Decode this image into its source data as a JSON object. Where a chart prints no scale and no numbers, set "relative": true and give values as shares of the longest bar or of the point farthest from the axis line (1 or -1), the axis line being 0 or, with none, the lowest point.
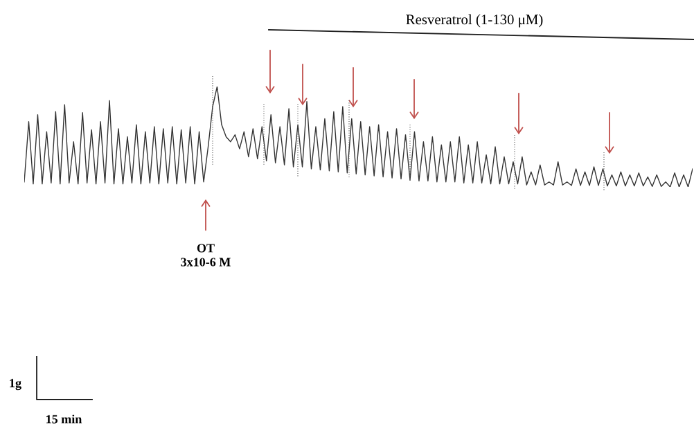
{
  "chart_data": {
    "type": "line",
    "relative": true,
    "annotations": [
      "Resveratrol (1-130 μM)",
      "OT\n3x10-6 M",
      "1g",
      "15 min"
    ],
    "categories": [
      null,
      null,
      null,
      null,
      null,
      null,
      null,
      null,
      null,
      null,
      null,
      null,
      null,
      null,
      null,
      null,
      null,
      null,
      null,
      null,
      null,
      null,
      null,
      null,
      null,
      null,
      null,
      null,
      null,
      null,
      null,
      null,
      null,
      null,
      null,
      null,
      null,
      null,
      null,
      null,
      null,
      null,
      null,
      null,
      null,
      null,
      null,
      null,
      null,
      null,
      null,
      null,
      null,
      null,
      null,
      null,
      null,
      null,
      null,
      null,
      null,
      null,
      null,
      null,
      null,
      null,
      null,
      null,
      null,
      null,
      null,
      null,
      null,
      null,
      null,
      null,
      null,
      null,
      null,
      null,
      null,
      null,
      null,
      null,
      null,
      null,
      null,
      null,
      null,
      null,
      null,
      null,
      null,
      null,
      null,
      null,
      null,
      null,
      null,
      null,
      null,
      null,
      null,
      null,
      null,
      null,
      null,
      null,
      null,
      null,
      null,
      null,
      null,
      null,
      null,
      null,
      null,
      null,
      null,
      null,
      null,
      null,
      null,
      null,
      null,
      null,
      null,
      null,
      null,
      null,
      null,
      null,
      null,
      null,
      null,
      null,
      null,
      null,
      null,
      null,
      null,
      null,
      null,
      null,
      null,
      null,
      null,
      null,
      null,
      null
    ],
    "series": [
      {
        "color": "#333333",
        "values": [
          0.05,
          0.65,
          0.03,
          0.72,
          0.03,
          0.55,
          0.04,
          0.75,
          0.03,
          0.82,
          0.04,
          0.45,
          0.03,
          0.74,
          0.04,
          0.57,
          0.03,
          0.65,
          0.04,
          0.86,
          0.03,
          0.58,
          0.03,
          0.5,
          0.04,
          0.62,
          0.03,
          0.55,
          0.04,
          0.6,
          0.03,
          0.58,
          0.04,
          0.6,
          0.03,
          0.57,
          0.04,
          0.6,
          0.03,
          0.55,
          0.05,
          0.4,
          0.8,
          1.0,
          0.62,
          0.5,
          0.45,
          0.52,
          0.38,
          0.55,
          0.3,
          0.58,
          0.28,
          0.6,
          0.26,
          0.72,
          0.24,
          0.6,
          0.22,
          0.78,
          0.2,
          0.62,
          0.2,
          0.85,
          0.18,
          0.6,
          0.17,
          0.68,
          0.16,
          0.75,
          0.15,
          0.8,
          0.14,
          0.68,
          0.13,
          0.65,
          0.12,
          0.6,
          0.11,
          0.62,
          0.1,
          0.55,
          0.09,
          0.58,
          0.08,
          0.52,
          0.07,
          0.55,
          0.06,
          0.45,
          0.06,
          0.5,
          0.05,
          0.42,
          0.05,
          0.45,
          0.05,
          0.5,
          0.04,
          0.42,
          0.04,
          0.45,
          0.04,
          0.32,
          0.03,
          0.4,
          0.03,
          0.3,
          0.03,
          0.25,
          0.03,
          0.3,
          0.02,
          0.15,
          0.02,
          0.22,
          0.02,
          0.05,
          0.02,
          0.25,
          0.02,
          0.05,
          0.015,
          0.18,
          0.015,
          0.15,
          0.015,
          0.2,
          0.015,
          0.18,
          0.01,
          0.12,
          0.01,
          0.15,
          0.01,
          0.12,
          0.01,
          0.14,
          0.01,
          0.1,
          0.005,
          0.12,
          0.005,
          0.05,
          0,
          0.14,
          0,
          0.12,
          0,
          0.18
        ]
      }
    ]
  }
}
